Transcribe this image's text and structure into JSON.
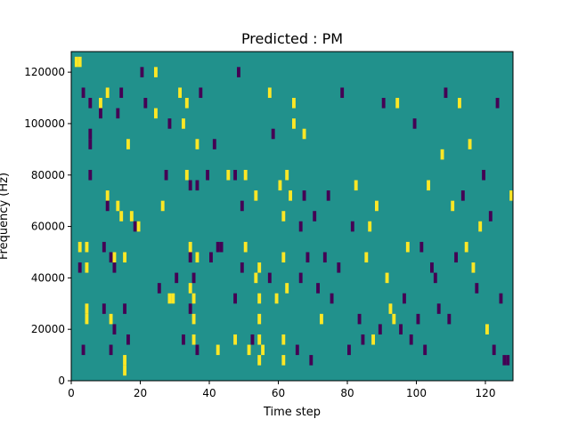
{
  "chart_data": {
    "type": "heatmap",
    "title": "Predicted : PM",
    "xlabel": "Time step",
    "ylabel": "Frequency (Hz)",
    "xlim": [
      0,
      128
    ],
    "ylim": [
      0,
      128000
    ],
    "x_ticks": [
      0,
      20,
      40,
      60,
      80,
      100,
      120
    ],
    "x_tick_labels": [
      "0",
      "20",
      "40",
      "60",
      "80",
      "100",
      "120"
    ],
    "y_ticks": [
      0,
      20000,
      40000,
      60000,
      80000,
      100000,
      120000
    ],
    "y_tick_labels": [
      "0",
      "20000",
      "40000",
      "60000",
      "80000",
      "100000",
      "120000"
    ],
    "grid": false,
    "legend": "none",
    "colormap": "viridis",
    "colors": {
      "background": "#21918c",
      "low": "#440154",
      "high": "#fde725"
    },
    "background_value": 0,
    "cell_width_time": 1,
    "cell_height_hz": 4000,
    "cells": [
      {
        "x": 1,
        "y": 122000,
        "v": 1
      },
      {
        "x": 2,
        "y": 122000,
        "v": 1
      },
      {
        "x": 3,
        "y": 110000,
        "v": -1
      },
      {
        "x": 5,
        "y": 106000,
        "v": -1
      },
      {
        "x": 5,
        "y": 94000,
        "v": -1
      },
      {
        "x": 5,
        "y": 90000,
        "v": -1
      },
      {
        "x": 5,
        "y": 78000,
        "v": -1
      },
      {
        "x": 4,
        "y": 50000,
        "v": 1
      },
      {
        "x": 2,
        "y": 50000,
        "v": 1
      },
      {
        "x": 4,
        "y": 42000,
        "v": 1
      },
      {
        "x": 2,
        "y": 42000,
        "v": -1
      },
      {
        "x": 4,
        "y": 26000,
        "v": 1
      },
      {
        "x": 4,
        "y": 22000,
        "v": 1
      },
      {
        "x": 3,
        "y": 10000,
        "v": -1
      },
      {
        "x": 8,
        "y": 106000,
        "v": 1
      },
      {
        "x": 8,
        "y": 102000,
        "v": -1
      },
      {
        "x": 10,
        "y": 110000,
        "v": 1
      },
      {
        "x": 10,
        "y": 70000,
        "v": 1
      },
      {
        "x": 10,
        "y": 66000,
        "v": -1
      },
      {
        "x": 9,
        "y": 50000,
        "v": -1
      },
      {
        "x": 11,
        "y": 46000,
        "v": -1
      },
      {
        "x": 12,
        "y": 42000,
        "v": -1
      },
      {
        "x": 12,
        "y": 46000,
        "v": 1
      },
      {
        "x": 9,
        "y": 26000,
        "v": -1
      },
      {
        "x": 11,
        "y": 22000,
        "v": 1
      },
      {
        "x": 12,
        "y": 18000,
        "v": -1
      },
      {
        "x": 11,
        "y": 10000,
        "v": -1
      },
      {
        "x": 14,
        "y": 110000,
        "v": -1
      },
      {
        "x": 13,
        "y": 102000,
        "v": -1
      },
      {
        "x": 13,
        "y": 66000,
        "v": 1
      },
      {
        "x": 14,
        "y": 62000,
        "v": 1
      },
      {
        "x": 15,
        "y": 46000,
        "v": 1
      },
      {
        "x": 15,
        "y": 26000,
        "v": -1
      },
      {
        "x": 16,
        "y": 14000,
        "v": -1
      },
      {
        "x": 15,
        "y": 6000,
        "v": 1
      },
      {
        "x": 15,
        "y": 2000,
        "v": 1
      },
      {
        "x": 16,
        "y": 90000,
        "v": 1
      },
      {
        "x": 17,
        "y": 62000,
        "v": 1
      },
      {
        "x": 18,
        "y": 58000,
        "v": -1
      },
      {
        "x": 19,
        "y": 58000,
        "v": 1
      },
      {
        "x": 20,
        "y": 118000,
        "v": -1
      },
      {
        "x": 21,
        "y": 106000,
        "v": -1
      },
      {
        "x": 24,
        "y": 118000,
        "v": 1
      },
      {
        "x": 24,
        "y": 102000,
        "v": 1
      },
      {
        "x": 25,
        "y": 34000,
        "v": -1
      },
      {
        "x": 26,
        "y": 66000,
        "v": 1
      },
      {
        "x": 27,
        "y": 78000,
        "v": -1
      },
      {
        "x": 28,
        "y": 98000,
        "v": -1
      },
      {
        "x": 28,
        "y": 30000,
        "v": 1
      },
      {
        "x": 29,
        "y": 30000,
        "v": 1
      },
      {
        "x": 31,
        "y": 110000,
        "v": 1
      },
      {
        "x": 30,
        "y": 38000,
        "v": -1
      },
      {
        "x": 32,
        "y": 14000,
        "v": -1
      },
      {
        "x": 32,
        "y": 98000,
        "v": 1
      },
      {
        "x": 33,
        "y": 106000,
        "v": 1
      },
      {
        "x": 33,
        "y": 78000,
        "v": 1
      },
      {
        "x": 34,
        "y": 74000,
        "v": -1
      },
      {
        "x": 34,
        "y": 50000,
        "v": 1
      },
      {
        "x": 34,
        "y": 46000,
        "v": -1
      },
      {
        "x": 34,
        "y": 34000,
        "v": 1
      },
      {
        "x": 34,
        "y": 26000,
        "v": -1
      },
      {
        "x": 35,
        "y": 38000,
        "v": -1
      },
      {
        "x": 35,
        "y": 30000,
        "v": 1
      },
      {
        "x": 35,
        "y": 22000,
        "v": 1
      },
      {
        "x": 35,
        "y": 14000,
        "v": 1
      },
      {
        "x": 36,
        "y": 90000,
        "v": 1
      },
      {
        "x": 36,
        "y": 74000,
        "v": -1
      },
      {
        "x": 36,
        "y": 46000,
        "v": 1
      },
      {
        "x": 36,
        "y": 10000,
        "v": -1
      },
      {
        "x": 37,
        "y": 110000,
        "v": -1
      },
      {
        "x": 39,
        "y": 78000,
        "v": -1
      },
      {
        "x": 40,
        "y": 46000,
        "v": -1
      },
      {
        "x": 41,
        "y": 90000,
        "v": -1
      },
      {
        "x": 42,
        "y": 50000,
        "v": -1
      },
      {
        "x": 42,
        "y": 10000,
        "v": 1
      },
      {
        "x": 43,
        "y": 50000,
        "v": -1
      },
      {
        "x": 45,
        "y": 78000,
        "v": 1
      },
      {
        "x": 47,
        "y": 78000,
        "v": -1
      },
      {
        "x": 47,
        "y": 14000,
        "v": 1
      },
      {
        "x": 47,
        "y": 30000,
        "v": -1
      },
      {
        "x": 48,
        "y": 118000,
        "v": -1
      },
      {
        "x": 49,
        "y": 42000,
        "v": -1
      },
      {
        "x": 49,
        "y": 66000,
        "v": -1
      },
      {
        "x": 50,
        "y": 78000,
        "v": 1
      },
      {
        "x": 50,
        "y": 50000,
        "v": 1
      },
      {
        "x": 51,
        "y": 10000,
        "v": 1
      },
      {
        "x": 52,
        "y": 14000,
        "v": -1
      },
      {
        "x": 53,
        "y": 70000,
        "v": 1
      },
      {
        "x": 53,
        "y": 38000,
        "v": 1
      },
      {
        "x": 54,
        "y": 42000,
        "v": 1
      },
      {
        "x": 54,
        "y": 30000,
        "v": 1
      },
      {
        "x": 54,
        "y": 22000,
        "v": 1
      },
      {
        "x": 54,
        "y": 14000,
        "v": 1
      },
      {
        "x": 54,
        "y": 6000,
        "v": 1
      },
      {
        "x": 55,
        "y": 10000,
        "v": 1
      },
      {
        "x": 57,
        "y": 38000,
        "v": -1
      },
      {
        "x": 57,
        "y": 110000,
        "v": 1
      },
      {
        "x": 58,
        "y": 94000,
        "v": -1
      },
      {
        "x": 59,
        "y": 30000,
        "v": 1
      },
      {
        "x": 60,
        "y": 74000,
        "v": 1
      },
      {
        "x": 61,
        "y": 62000,
        "v": 1
      },
      {
        "x": 61,
        "y": 46000,
        "v": 1
      },
      {
        "x": 61,
        "y": 14000,
        "v": 1
      },
      {
        "x": 61,
        "y": 6000,
        "v": 1
      },
      {
        "x": 62,
        "y": 78000,
        "v": 1
      },
      {
        "x": 62,
        "y": 34000,
        "v": 1
      },
      {
        "x": 63,
        "y": 70000,
        "v": 1
      },
      {
        "x": 64,
        "y": 98000,
        "v": 1
      },
      {
        "x": 64,
        "y": 106000,
        "v": 1
      },
      {
        "x": 65,
        "y": 10000,
        "v": -1
      },
      {
        "x": 66,
        "y": 38000,
        "v": -1
      },
      {
        "x": 66,
        "y": 58000,
        "v": -1
      },
      {
        "x": 67,
        "y": 94000,
        "v": 1
      },
      {
        "x": 67,
        "y": 70000,
        "v": -1
      },
      {
        "x": 68,
        "y": 46000,
        "v": -1
      },
      {
        "x": 69,
        "y": 6000,
        "v": -1
      },
      {
        "x": 70,
        "y": 62000,
        "v": -1
      },
      {
        "x": 71,
        "y": 34000,
        "v": -1
      },
      {
        "x": 72,
        "y": 22000,
        "v": 1
      },
      {
        "x": 73,
        "y": 46000,
        "v": -1
      },
      {
        "x": 74,
        "y": 70000,
        "v": -1
      },
      {
        "x": 75,
        "y": 30000,
        "v": -1
      },
      {
        "x": 77,
        "y": 42000,
        "v": -1
      },
      {
        "x": 78,
        "y": 110000,
        "v": -1
      },
      {
        "x": 80,
        "y": 10000,
        "v": -1
      },
      {
        "x": 81,
        "y": 58000,
        "v": -1
      },
      {
        "x": 82,
        "y": 74000,
        "v": 1
      },
      {
        "x": 83,
        "y": 22000,
        "v": -1
      },
      {
        "x": 84,
        "y": 14000,
        "v": -1
      },
      {
        "x": 85,
        "y": 46000,
        "v": 1
      },
      {
        "x": 86,
        "y": 58000,
        "v": 1
      },
      {
        "x": 87,
        "y": 14000,
        "v": 1
      },
      {
        "x": 88,
        "y": 66000,
        "v": 1
      },
      {
        "x": 89,
        "y": 18000,
        "v": -1
      },
      {
        "x": 90,
        "y": 106000,
        "v": -1
      },
      {
        "x": 91,
        "y": 38000,
        "v": 1
      },
      {
        "x": 92,
        "y": 26000,
        "v": 1
      },
      {
        "x": 93,
        "y": 22000,
        "v": 1
      },
      {
        "x": 94,
        "y": 106000,
        "v": 1
      },
      {
        "x": 95,
        "y": 18000,
        "v": -1
      },
      {
        "x": 96,
        "y": 30000,
        "v": -1
      },
      {
        "x": 97,
        "y": 50000,
        "v": 1
      },
      {
        "x": 98,
        "y": 14000,
        "v": -1
      },
      {
        "x": 99,
        "y": 98000,
        "v": -1
      },
      {
        "x": 100,
        "y": 22000,
        "v": -1
      },
      {
        "x": 101,
        "y": 50000,
        "v": -1
      },
      {
        "x": 102,
        "y": 10000,
        "v": -1
      },
      {
        "x": 103,
        "y": 74000,
        "v": 1
      },
      {
        "x": 104,
        "y": 42000,
        "v": -1
      },
      {
        "x": 105,
        "y": 38000,
        "v": -1
      },
      {
        "x": 106,
        "y": 26000,
        "v": -1
      },
      {
        "x": 107,
        "y": 86000,
        "v": 1
      },
      {
        "x": 108,
        "y": 110000,
        "v": -1
      },
      {
        "x": 109,
        "y": 22000,
        "v": -1
      },
      {
        "x": 110,
        "y": 66000,
        "v": 1
      },
      {
        "x": 111,
        "y": 46000,
        "v": -1
      },
      {
        "x": 112,
        "y": 106000,
        "v": 1
      },
      {
        "x": 113,
        "y": 70000,
        "v": -1
      },
      {
        "x": 114,
        "y": 50000,
        "v": 1
      },
      {
        "x": 115,
        "y": 90000,
        "v": 1
      },
      {
        "x": 116,
        "y": 42000,
        "v": 1
      },
      {
        "x": 117,
        "y": 34000,
        "v": -1
      },
      {
        "x": 118,
        "y": 58000,
        "v": 1
      },
      {
        "x": 119,
        "y": 78000,
        "v": -1
      },
      {
        "x": 120,
        "y": 18000,
        "v": 1
      },
      {
        "x": 121,
        "y": 62000,
        "v": -1
      },
      {
        "x": 122,
        "y": 10000,
        "v": -1
      },
      {
        "x": 123,
        "y": 106000,
        "v": -1
      },
      {
        "x": 124,
        "y": 30000,
        "v": -1
      },
      {
        "x": 125,
        "y": 6000,
        "v": -1
      },
      {
        "x": 126,
        "y": 6000,
        "v": -1
      },
      {
        "x": 127,
        "y": 70000,
        "v": 1
      }
    ]
  }
}
